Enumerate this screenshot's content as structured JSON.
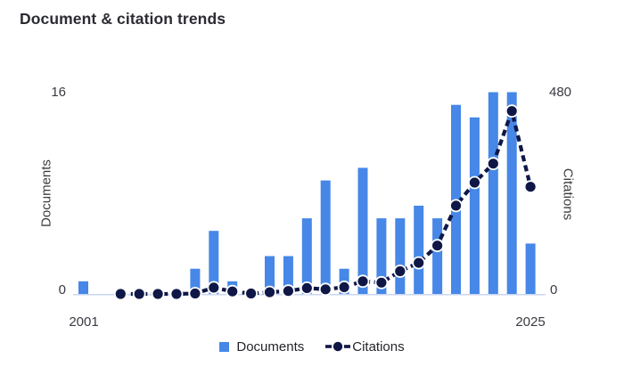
{
  "title": "Document & citation trends",
  "axes": {
    "left": {
      "label": "Documents",
      "top_tick": "16",
      "bottom_tick": "0"
    },
    "right": {
      "label": "Citations",
      "top_tick": "480",
      "bottom_tick": "0"
    },
    "x": {
      "start_tick": "2001",
      "end_tick": "2025"
    }
  },
  "legend": {
    "documents_label": "Documents",
    "citations_label": "Citations"
  },
  "colors": {
    "bar": "#4687e8",
    "line": "#0f1747",
    "point_outline": "#ffffff",
    "axis_line": "#c9d6f2",
    "title_text": "#2b2b33",
    "tick_text": "#3a3a42"
  },
  "chart_data": {
    "type": "combo-bar-line-dual-axis",
    "title": "Document & citation trends",
    "categories": [
      2001,
      2002,
      2003,
      2004,
      2005,
      2006,
      2007,
      2008,
      2009,
      2010,
      2011,
      2012,
      2013,
      2014,
      2015,
      2016,
      2017,
      2018,
      2019,
      2020,
      2021,
      2022,
      2023,
      2024,
      2025
    ],
    "series": [
      {
        "name": "Documents",
        "type": "bar",
        "axis": "left",
        "values": [
          1,
          0,
          0,
          0,
          0,
          0,
          2,
          5,
          1,
          0,
          3,
          3,
          6,
          9,
          2,
          10,
          6,
          6,
          7,
          6,
          15,
          14,
          16,
          16,
          4
        ]
      },
      {
        "name": "Citations",
        "type": "line-dashed-with-markers",
        "axis": "right",
        "values": [
          null,
          null,
          0,
          0,
          0,
          0,
          1,
          15,
          6,
          1,
          4,
          7,
          14,
          11,
          16,
          30,
          27,
          54,
          74,
          115,
          210,
          265,
          310,
          435,
          255
        ]
      }
    ],
    "left_axis": {
      "label": "Documents",
      "range": [
        0,
        16
      ]
    },
    "right_axis": {
      "label": "Citations",
      "range": [
        0,
        480
      ]
    },
    "x_tick_labels_shown": [
      "2001",
      "2025"
    ],
    "grid": false,
    "legend_position": "bottom"
  }
}
